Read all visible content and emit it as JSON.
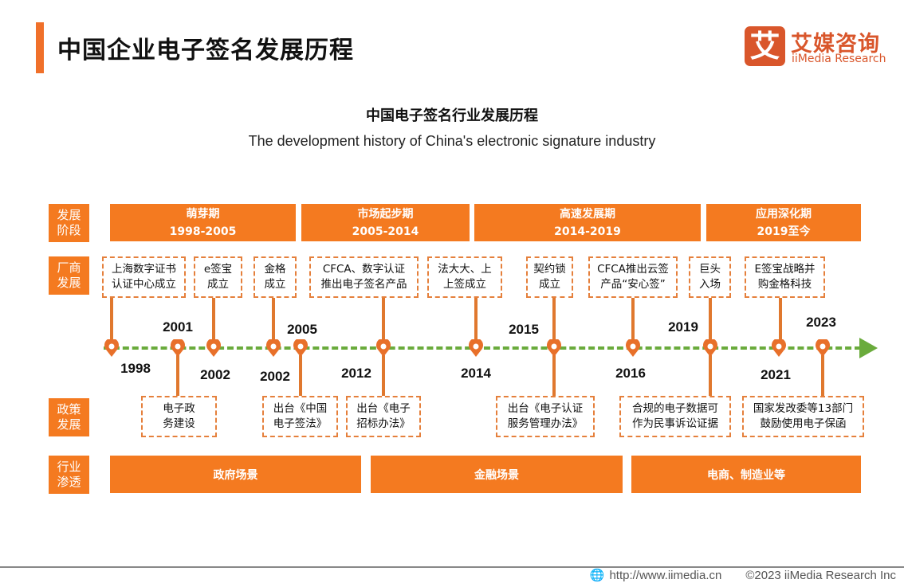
{
  "header": {
    "title": "中国企业电子签名发展历程"
  },
  "logo": {
    "mark": "艾",
    "name_cn": "艾媒咨询",
    "name_en": "iiMedia Research"
  },
  "chart": {
    "title_cn": "中国电子签名行业发展历程",
    "title_en": "The development history of China's electronic signature industry"
  },
  "row_labels": {
    "stage": "发展\n阶段",
    "vendor": "厂商\n发展",
    "policy": "政策\n发展",
    "industry": "行业\n渗透"
  },
  "stages": [
    {
      "name": "萌芽期",
      "period": "1998-2005"
    },
    {
      "name": "市场起步期",
      "period": "2005-2014"
    },
    {
      "name": "高速发展期",
      "period": "2014-2019"
    },
    {
      "name": "应用深化期",
      "period": "2019至今"
    }
  ],
  "vendor_events": [
    {
      "text": "上海数字证书\n认证中心成立",
      "year": "1998"
    },
    {
      "text": "e签宝\n成立",
      "year": "2002"
    },
    {
      "text": "金格\n成立",
      "year": "2002"
    },
    {
      "text": "CFCA、数字认证\n推出电子签名产品",
      "year": "2012"
    },
    {
      "text": "法大大、上\n上签成立",
      "year": "2014"
    },
    {
      "text": "契约锁\n成立",
      "year": "2015"
    },
    {
      "text": "CFCA推出云签\n产品“安心签”",
      "year": "2016"
    },
    {
      "text": "巨头\n入场",
      "year": "2019"
    },
    {
      "text": "E签宝战略并\n购金格科技",
      "year": "2021"
    }
  ],
  "policy_events": [
    {
      "text": "电子政\n务建设",
      "year": "2001"
    },
    {
      "text": "出台《中国\n电子签法》",
      "year": "2005"
    },
    {
      "text": "出台《电子\n招标办法》",
      "year": "2012"
    },
    {
      "text": "出台《电子认证\n服务管理办法》",
      "year": "2015"
    },
    {
      "text": "合规的电子数据可\n作为民事诉讼证据",
      "year": "2019"
    },
    {
      "text": "国家发改委等13部门\n鼓励使用电子保函",
      "year": "2023"
    }
  ],
  "year_labels": [
    "1998",
    "2001",
    "2002",
    "2002",
    "2005",
    "2012",
    "2014",
    "2015",
    "2016",
    "2019",
    "2021",
    "2023"
  ],
  "industries": [
    "政府场景",
    "金融场景",
    "电商、制造业等"
  ],
  "footer": {
    "url": "http://www.iimedia.cn",
    "copyright": "©2023  iiMedia Research  Inc"
  },
  "colors": {
    "accent": "#f47a20",
    "timeline": "#6aab3c",
    "logo": "#d9562b"
  }
}
